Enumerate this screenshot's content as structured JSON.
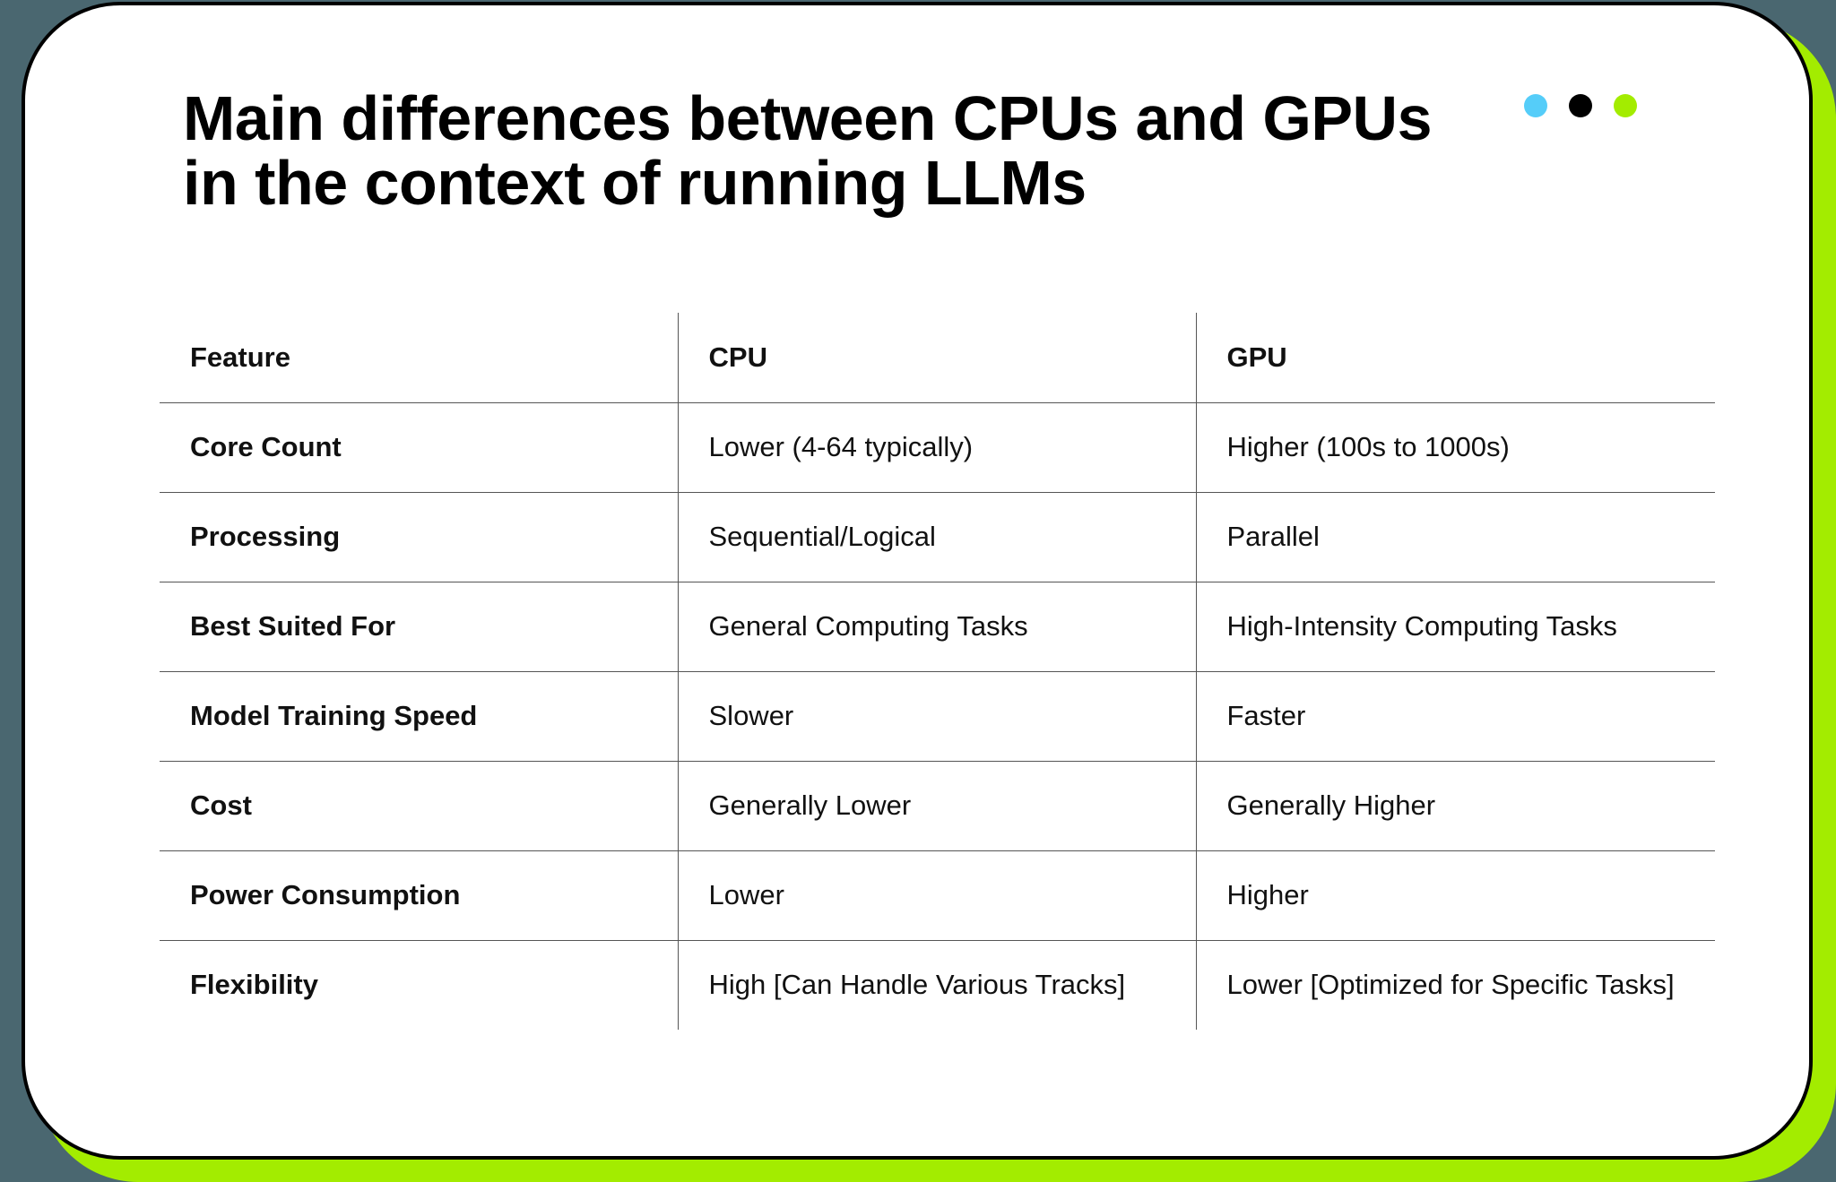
{
  "title": "Main differences between CPUs and GPUs in the context of running LLMs",
  "dots": [
    {
      "name": "blue-dot",
      "color": "#55cdf9"
    },
    {
      "name": "black-dot",
      "color": "#000000"
    },
    {
      "name": "green-dot",
      "color": "#a3ec00"
    }
  ],
  "colors": {
    "background": "#4a6770",
    "accent": "#a3ec00"
  },
  "table": {
    "headers": [
      "Feature",
      "CPU",
      "GPU"
    ],
    "rows": [
      [
        "Core Count",
        "Lower (4-64 typically)",
        "Higher (100s to 1000s)"
      ],
      [
        "Processing",
        "Sequential/Logical",
        "Parallel"
      ],
      [
        "Best Suited For",
        "General Computing Tasks",
        "High-Intensity Computing Tasks"
      ],
      [
        "Model Training Speed",
        "Slower",
        "Faster"
      ],
      [
        "Cost",
        "Generally Lower",
        "Generally Higher"
      ],
      [
        "Power Consumption",
        "Lower",
        "Higher"
      ],
      [
        "Flexibility",
        "High [Can Handle Various Tracks]",
        "Lower [Optimized for Specific Tasks]"
      ]
    ]
  }
}
